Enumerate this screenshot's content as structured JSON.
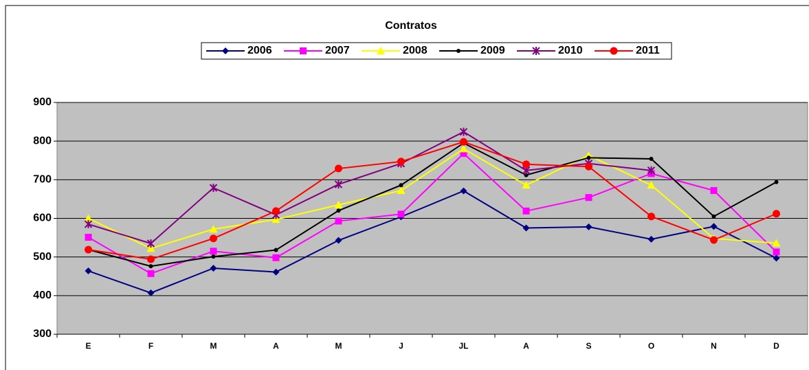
{
  "chart_data": {
    "type": "line",
    "title": "Contratos",
    "categories": [
      "E",
      "F",
      "M",
      "A",
      "M",
      "J",
      "JL",
      "A",
      "S",
      "O",
      "N",
      "D"
    ],
    "series": [
      {
        "name": "2006",
        "color": "#000080",
        "marker": "diamond",
        "values": [
          464,
          407,
          471,
          461,
          543,
          604,
          671,
          575,
          578,
          546,
          579,
          497
        ]
      },
      {
        "name": "2007",
        "color": "#ff00ff",
        "marker": "square",
        "values": [
          551,
          457,
          515,
          498,
          593,
          611,
          768,
          619,
          654,
          716,
          672,
          513
        ]
      },
      {
        "name": "2008",
        "color": "#ffff00",
        "marker": "triangle",
        "values": [
          600,
          522,
          572,
          597,
          635,
          672,
          780,
          686,
          763,
          686,
          548,
          536
        ]
      },
      {
        "name": "2009",
        "color": "#000000",
        "marker": "dot",
        "values": [
          519,
          476,
          501,
          518,
          620,
          686,
          795,
          712,
          757,
          754,
          605,
          694
        ]
      },
      {
        "name": "2010",
        "color": "#800080",
        "marker": "star",
        "values": [
          585,
          535,
          679,
          609,
          688,
          742,
          824,
          724,
          742,
          724,
          null,
          null
        ]
      },
      {
        "name": "2011",
        "color": "#ff0000",
        "marker": "circle",
        "values": [
          519,
          494,
          548,
          619,
          729,
          747,
          798,
          740,
          734,
          605,
          544,
          612
        ]
      }
    ],
    "ylim": [
      300,
      900
    ],
    "yticks": [
      300,
      400,
      500,
      600,
      700,
      800,
      900
    ],
    "grid": true,
    "legend": "top"
  }
}
